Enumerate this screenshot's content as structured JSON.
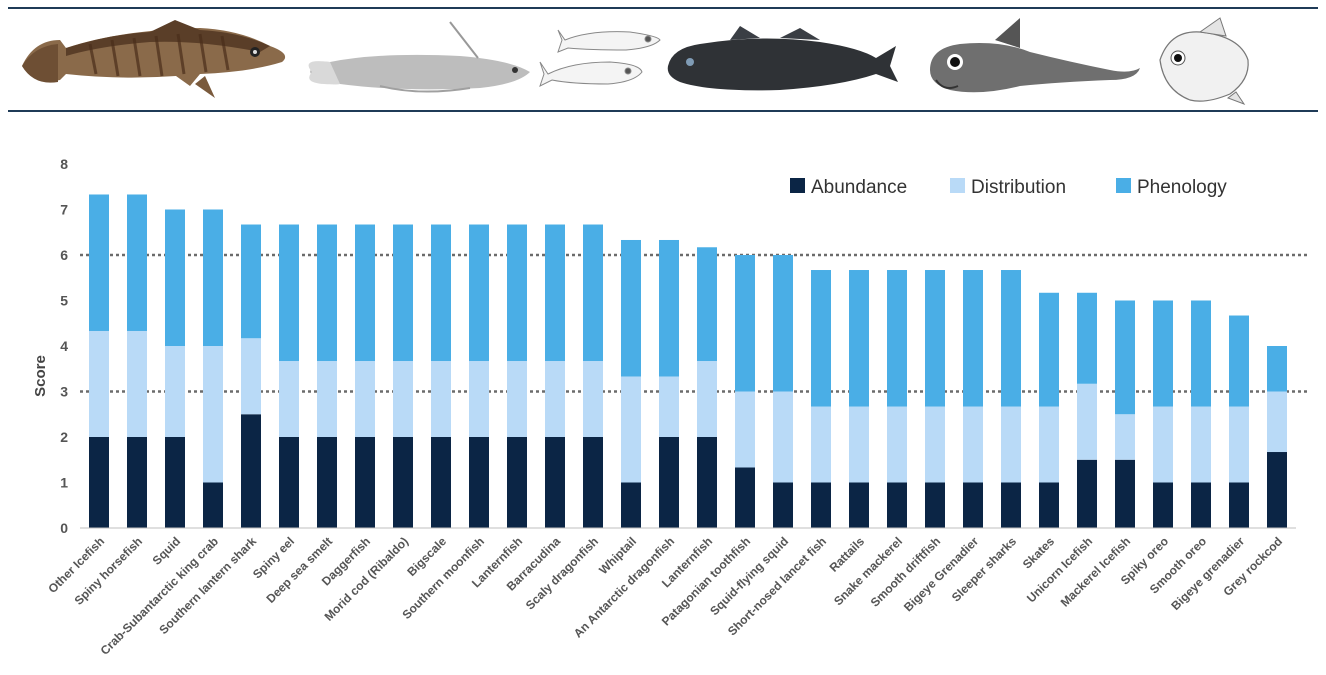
{
  "banner": {
    "fish_icons": [
      "icefish-illustration",
      "moray-cod-photo",
      "lanternfish-drawings",
      "toothfish-photo",
      "grenadier-illustration",
      "oreo-dory-drawing"
    ]
  },
  "chart_data": {
    "type": "bar",
    "stacked": true,
    "ylabel": "Score",
    "xlabel": "",
    "ylim": [
      0,
      8
    ],
    "yticks": [
      0,
      1,
      2,
      3,
      4,
      5,
      6,
      7,
      8
    ],
    "reference_lines": [
      3,
      6
    ],
    "legend_position": "top-right",
    "categories": [
      "Other Icefish",
      "Spiny horsefish",
      "Squid",
      "Crab-Subantarctic king crab",
      "Southern lantern shark",
      "Spiny eel",
      "Deep sea smelt",
      "Daggerfish",
      "Morid cod (Ribaldo)",
      "Bigscale",
      "Southern moonfish",
      "Lanternfish",
      "Barracudina",
      "Scaly dragonfish",
      "Whiptail",
      "An Antarctic dragonfish",
      "Lanternfish",
      "Patagonian toothfish",
      "Squid-flying squid",
      "Short-nosed lancet fish",
      "Rattails",
      "Snake mackerel",
      "Smooth driftfish",
      "Bigeye Grenadier",
      "Sleeper sharks",
      "Skates",
      "Unicorn Icefish",
      "Mackerel Icefish",
      "Spiky oreo",
      "Smooth oreo",
      "Bigeye grenadier",
      "Grey rockcod"
    ],
    "series": [
      {
        "name": "Abundance",
        "color": "#0b2545",
        "values": [
          2,
          2,
          2,
          1,
          2.5,
          2,
          2,
          2,
          2,
          2,
          2,
          2,
          2,
          2,
          1,
          2,
          2,
          1.33,
          1,
          1,
          1,
          1,
          1,
          1,
          1,
          1,
          1.5,
          1.5,
          1,
          1,
          1,
          1.67
        ]
      },
      {
        "name": "Distribution",
        "color": "#b9daf7",
        "values": [
          2.33,
          2.33,
          2,
          3,
          1.67,
          1.67,
          1.67,
          1.67,
          1.67,
          1.67,
          1.67,
          1.67,
          1.67,
          1.67,
          2.33,
          1.33,
          1.67,
          1.67,
          2,
          1.67,
          1.67,
          1.67,
          1.67,
          1.67,
          1.67,
          1.67,
          1.67,
          1,
          1.67,
          1.67,
          1.67,
          1.33
        ]
      },
      {
        "name": "Phenology",
        "color": "#4aaee6",
        "values": [
          3,
          3,
          3,
          3,
          2.5,
          3,
          3,
          3,
          3,
          3,
          3,
          3,
          3,
          3,
          3,
          3,
          2.5,
          3,
          3,
          3,
          3,
          3,
          3,
          3,
          3,
          2.5,
          2,
          2.5,
          2.33,
          2.33,
          2,
          1
        ]
      }
    ]
  }
}
